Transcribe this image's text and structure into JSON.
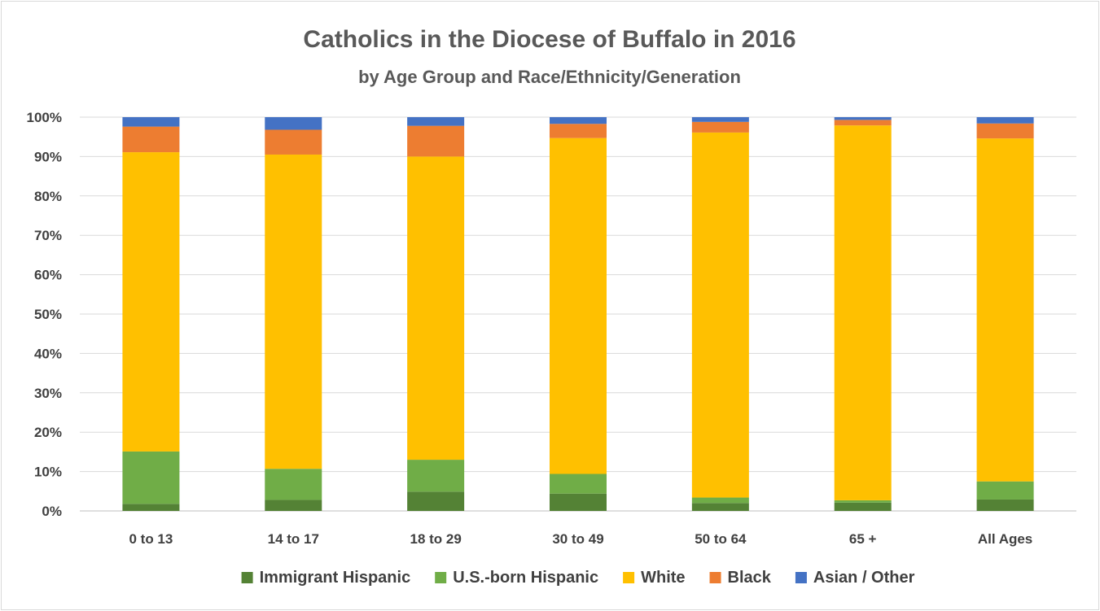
{
  "chart_data": {
    "type": "bar",
    "stacked": true,
    "percent_stacked": true,
    "title": "Catholics in the Diocese of Buffalo in 2016",
    "subtitle": "by Age Group and Race/Ethnicity/Generation",
    "categories": [
      "0 to 13",
      "14 to 17",
      "18 to 29",
      "30 to 49",
      "50 to 64",
      "65 +",
      "All Ages"
    ],
    "y_ticks": [
      "0%",
      "10%",
      "20%",
      "30%",
      "40%",
      "50%",
      "60%",
      "70%",
      "80%",
      "90%",
      "100%"
    ],
    "ylim": [
      0,
      100
    ],
    "grid": true,
    "legend_position": "bottom",
    "series": [
      {
        "name": "Immigrant Hispanic",
        "color": "#548235",
        "values": [
          1.8,
          2.8,
          4.9,
          4.4,
          2.0,
          2.1,
          2.9
        ]
      },
      {
        "name": "U.S.-born Hispanic",
        "color": "#70ad47",
        "values": [
          13.3,
          7.9,
          8.1,
          5.0,
          1.4,
          0.6,
          4.6
        ]
      },
      {
        "name": "White",
        "color": "#ffc000",
        "values": [
          76.0,
          79.8,
          77.0,
          85.3,
          92.7,
          95.2,
          87.1
        ]
      },
      {
        "name": "Black",
        "color": "#ed7d31",
        "values": [
          6.5,
          6.3,
          7.8,
          3.6,
          2.7,
          1.4,
          3.8
        ]
      },
      {
        "name": "Asian / Other",
        "color": "#4472c4",
        "values": [
          2.4,
          3.2,
          2.2,
          1.7,
          1.2,
          0.7,
          1.6
        ]
      }
    ]
  }
}
